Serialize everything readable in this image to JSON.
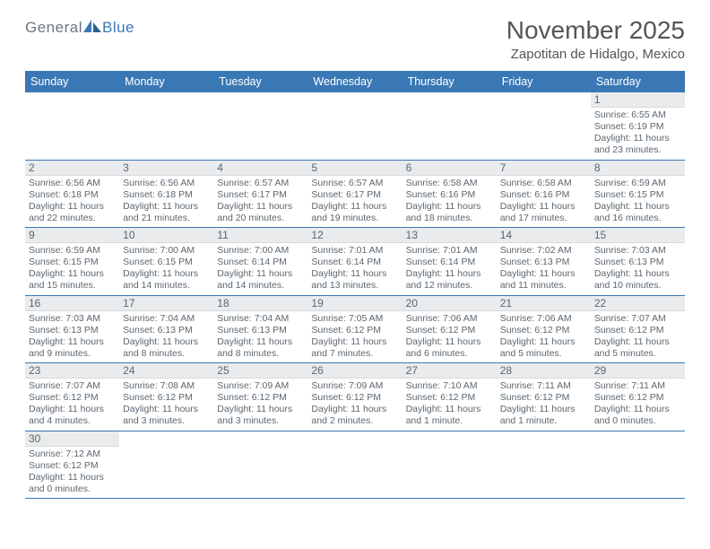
{
  "brand": {
    "part1": "General",
    "part2": "Blue"
  },
  "month_title": "November 2025",
  "location": "Zapotitan de Hidalgo, Mexico",
  "accent_color": "#3a78b5",
  "header_bg": "#e9ebec",
  "text_color": "#5c6770",
  "days_of_week": [
    "Sunday",
    "Monday",
    "Tuesday",
    "Wednesday",
    "Thursday",
    "Friday",
    "Saturday"
  ],
  "weeks": [
    [
      null,
      null,
      null,
      null,
      null,
      null,
      {
        "n": "1",
        "sunrise": "6:55 AM",
        "sunset": "6:19 PM",
        "daylight": "11 hours and 23 minutes."
      }
    ],
    [
      {
        "n": "2",
        "sunrise": "6:56 AM",
        "sunset": "6:18 PM",
        "daylight": "11 hours and 22 minutes."
      },
      {
        "n": "3",
        "sunrise": "6:56 AM",
        "sunset": "6:18 PM",
        "daylight": "11 hours and 21 minutes."
      },
      {
        "n": "4",
        "sunrise": "6:57 AM",
        "sunset": "6:17 PM",
        "daylight": "11 hours and 20 minutes."
      },
      {
        "n": "5",
        "sunrise": "6:57 AM",
        "sunset": "6:17 PM",
        "daylight": "11 hours and 19 minutes."
      },
      {
        "n": "6",
        "sunrise": "6:58 AM",
        "sunset": "6:16 PM",
        "daylight": "11 hours and 18 minutes."
      },
      {
        "n": "7",
        "sunrise": "6:58 AM",
        "sunset": "6:16 PM",
        "daylight": "11 hours and 17 minutes."
      },
      {
        "n": "8",
        "sunrise": "6:59 AM",
        "sunset": "6:15 PM",
        "daylight": "11 hours and 16 minutes."
      }
    ],
    [
      {
        "n": "9",
        "sunrise": "6:59 AM",
        "sunset": "6:15 PM",
        "daylight": "11 hours and 15 minutes."
      },
      {
        "n": "10",
        "sunrise": "7:00 AM",
        "sunset": "6:15 PM",
        "daylight": "11 hours and 14 minutes."
      },
      {
        "n": "11",
        "sunrise": "7:00 AM",
        "sunset": "6:14 PM",
        "daylight": "11 hours and 14 minutes."
      },
      {
        "n": "12",
        "sunrise": "7:01 AM",
        "sunset": "6:14 PM",
        "daylight": "11 hours and 13 minutes."
      },
      {
        "n": "13",
        "sunrise": "7:01 AM",
        "sunset": "6:14 PM",
        "daylight": "11 hours and 12 minutes."
      },
      {
        "n": "14",
        "sunrise": "7:02 AM",
        "sunset": "6:13 PM",
        "daylight": "11 hours and 11 minutes."
      },
      {
        "n": "15",
        "sunrise": "7:03 AM",
        "sunset": "6:13 PM",
        "daylight": "11 hours and 10 minutes."
      }
    ],
    [
      {
        "n": "16",
        "sunrise": "7:03 AM",
        "sunset": "6:13 PM",
        "daylight": "11 hours and 9 minutes."
      },
      {
        "n": "17",
        "sunrise": "7:04 AM",
        "sunset": "6:13 PM",
        "daylight": "11 hours and 8 minutes."
      },
      {
        "n": "18",
        "sunrise": "7:04 AM",
        "sunset": "6:13 PM",
        "daylight": "11 hours and 8 minutes."
      },
      {
        "n": "19",
        "sunrise": "7:05 AM",
        "sunset": "6:12 PM",
        "daylight": "11 hours and 7 minutes."
      },
      {
        "n": "20",
        "sunrise": "7:06 AM",
        "sunset": "6:12 PM",
        "daylight": "11 hours and 6 minutes."
      },
      {
        "n": "21",
        "sunrise": "7:06 AM",
        "sunset": "6:12 PM",
        "daylight": "11 hours and 5 minutes."
      },
      {
        "n": "22",
        "sunrise": "7:07 AM",
        "sunset": "6:12 PM",
        "daylight": "11 hours and 5 minutes."
      }
    ],
    [
      {
        "n": "23",
        "sunrise": "7:07 AM",
        "sunset": "6:12 PM",
        "daylight": "11 hours and 4 minutes."
      },
      {
        "n": "24",
        "sunrise": "7:08 AM",
        "sunset": "6:12 PM",
        "daylight": "11 hours and 3 minutes."
      },
      {
        "n": "25",
        "sunrise": "7:09 AM",
        "sunset": "6:12 PM",
        "daylight": "11 hours and 3 minutes."
      },
      {
        "n": "26",
        "sunrise": "7:09 AM",
        "sunset": "6:12 PM",
        "daylight": "11 hours and 2 minutes."
      },
      {
        "n": "27",
        "sunrise": "7:10 AM",
        "sunset": "6:12 PM",
        "daylight": "11 hours and 1 minute."
      },
      {
        "n": "28",
        "sunrise": "7:11 AM",
        "sunset": "6:12 PM",
        "daylight": "11 hours and 1 minute."
      },
      {
        "n": "29",
        "sunrise": "7:11 AM",
        "sunset": "6:12 PM",
        "daylight": "11 hours and 0 minutes."
      }
    ],
    [
      {
        "n": "30",
        "sunrise": "7:12 AM",
        "sunset": "6:12 PM",
        "daylight": "11 hours and 0 minutes."
      },
      null,
      null,
      null,
      null,
      null,
      null
    ]
  ],
  "labels": {
    "sunrise": "Sunrise:",
    "sunset": "Sunset:",
    "daylight": "Daylight:"
  }
}
